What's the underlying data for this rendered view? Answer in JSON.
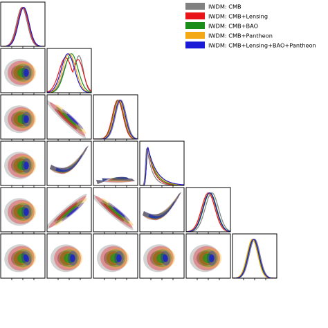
{
  "chart_data": {
    "type": "triangle",
    "grid": false,
    "legend_position": "top-right",
    "n_params": 7,
    "series": [
      {
        "name": "IWDM: CMB",
        "color": "#808080",
        "peaks": [
          0.58,
          0.48,
          0.52,
          0.62,
          0.16,
          0.58,
          0.5
        ]
      },
      {
        "name": "IWDM: CMB+Lensing",
        "color": "#e8141a",
        "peaks": [
          0.5,
          0.5,
          0.42,
          0.55,
          0.18,
          0.5,
          0.47
        ]
      },
      {
        "name": "IWDM: CMB+BAO",
        "color": "#1a8c1a",
        "peaks": [
          0.54,
          0.52,
          0.55,
          0.57,
          0.18,
          0.54,
          0.46
        ]
      },
      {
        "name": "IWDM: CMB+Pantheon",
        "color": "#f4a816",
        "peaks": [
          0.55,
          0.52,
          0.5,
          0.58,
          0.18,
          0.52,
          0.45
        ]
      },
      {
        "name": "IWDM: CMB+Lensing+BAO+Pantheon",
        "color": "#1a1ad6",
        "peaks": [
          0.56,
          0.52,
          0.47,
          0.6,
          0.18,
          0.53,
          0.48
        ]
      }
    ],
    "pairs": [
      {
        "row": 1,
        "col": 0,
        "corr": 0.0
      },
      {
        "row": 2,
        "col": 0,
        "corr": -0.95
      },
      {
        "row": 2,
        "col": 1,
        "corr": 0.0
      },
      {
        "row": 3,
        "col": 0,
        "corr": 0.95
      },
      {
        "row": 3,
        "col": 1,
        "corr": 0.0
      },
      {
        "row": 3,
        "col": 2,
        "corr": -0.95
      },
      {
        "row": 4,
        "col": 0,
        "corr": 0.6,
        "shape": "banana"
      },
      {
        "row": 4,
        "col": 1,
        "corr": 0.0
      },
      {
        "row": 4,
        "col": 2,
        "corr": 0.6,
        "shape": "banana"
      },
      {
        "row": 4,
        "col": 3,
        "corr": -0.6,
        "shape": "banana"
      },
      {
        "row": 5,
        "col": 0,
        "corr": -0.9
      },
      {
        "row": 5,
        "col": 1,
        "corr": 0.0
      },
      {
        "row": 5,
        "col": 2,
        "corr": 0.85
      },
      {
        "row": 5,
        "col": 3,
        "corr": -0.85
      },
      {
        "row": 5,
        "col": 4,
        "corr": 0.6,
        "shape": "banana"
      },
      {
        "row": 6,
        "col": 0,
        "corr": 0.0
      },
      {
        "row": 6,
        "col": 1,
        "corr": 0.35
      },
      {
        "row": 6,
        "col": 2,
        "corr": 0.0
      },
      {
        "row": 6,
        "col": 3,
        "corr": 0.0
      },
      {
        "row": 6,
        "col": 4,
        "corr": 0.2
      },
      {
        "row": 6,
        "col": 5,
        "corr": 0.0
      }
    ]
  }
}
